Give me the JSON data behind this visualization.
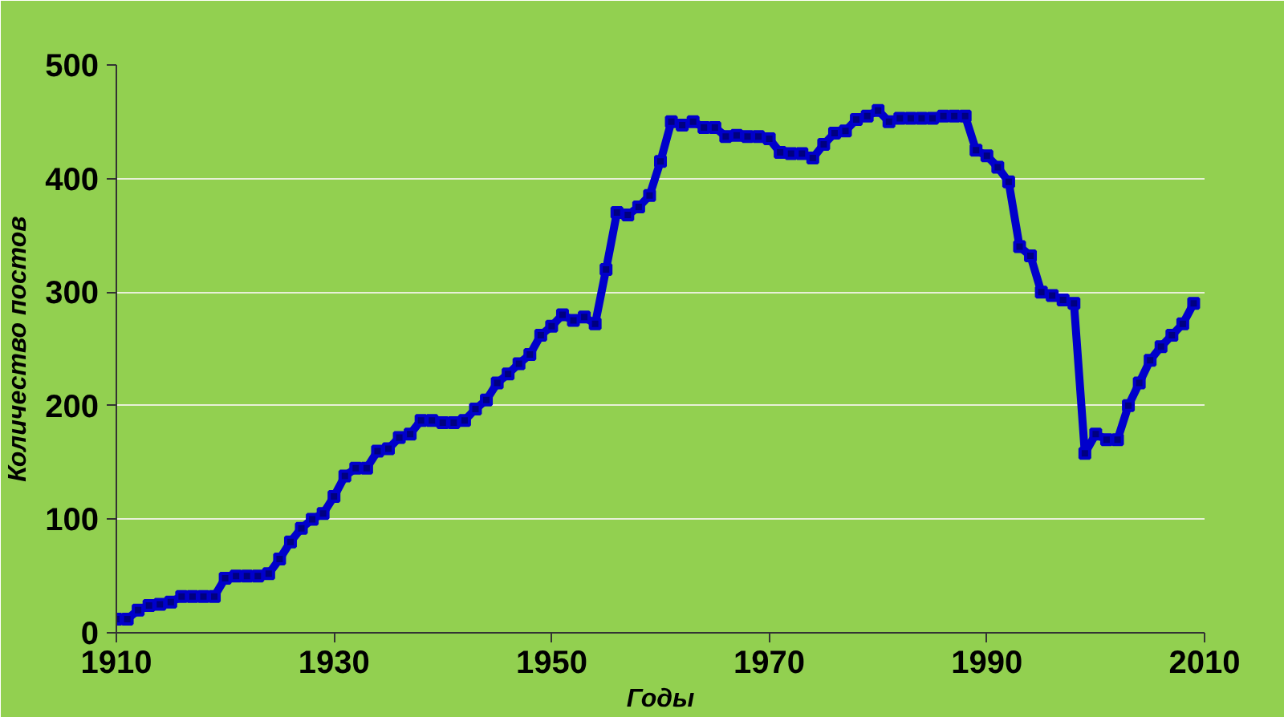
{
  "chart_data": {
    "type": "line",
    "xlabel": "Годы",
    "ylabel": "Количество постов",
    "x": [
      1910,
      1911,
      1912,
      1913,
      1914,
      1915,
      1916,
      1917,
      1918,
      1919,
      1920,
      1921,
      1922,
      1923,
      1924,
      1925,
      1926,
      1927,
      1928,
      1929,
      1930,
      1931,
      1932,
      1933,
      1934,
      1935,
      1936,
      1937,
      1938,
      1939,
      1940,
      1941,
      1942,
      1943,
      1944,
      1945,
      1946,
      1947,
      1948,
      1949,
      1950,
      1951,
      1952,
      1953,
      1954,
      1955,
      1956,
      1957,
      1958,
      1959,
      1960,
      1961,
      1962,
      1963,
      1964,
      1965,
      1966,
      1967,
      1968,
      1969,
      1970,
      1971,
      1972,
      1973,
      1974,
      1975,
      1976,
      1977,
      1978,
      1979,
      1980,
      1981,
      1982,
      1983,
      1984,
      1985,
      1986,
      1987,
      1988,
      1989,
      1990,
      1991,
      1992,
      1993,
      1994,
      1995,
      1996,
      1997,
      1998,
      1999,
      2000,
      2001,
      2002,
      2003,
      2004,
      2005,
      2006,
      2007,
      2008,
      2009
    ],
    "series": [
      {
        "color": "#0000cc",
        "values": [
          12,
          12,
          20,
          24,
          25,
          27,
          32,
          32,
          32,
          32,
          48,
          50,
          50,
          50,
          52,
          65,
          80,
          92,
          100,
          105,
          120,
          138,
          145,
          145,
          160,
          162,
          172,
          175,
          187,
          187,
          185,
          185,
          187,
          197,
          205,
          220,
          228,
          237,
          245,
          262,
          270,
          280,
          275,
          278,
          272,
          320,
          370,
          368,
          375,
          385,
          415,
          450,
          447,
          450,
          445,
          445,
          437,
          438,
          437,
          437,
          435,
          423,
          422,
          422,
          418,
          430,
          440,
          442,
          452,
          455,
          460,
          450,
          453,
          453,
          453,
          453,
          455,
          455,
          455,
          425,
          420,
          410,
          397,
          340,
          332,
          300,
          297,
          293,
          290,
          158,
          175,
          170,
          170,
          200,
          220,
          240,
          252,
          262,
          272,
          290
        ]
      }
    ],
    "xlim": [
      1910,
      2010
    ],
    "xticks": [
      1910,
      1930,
      1950,
      1970,
      1990,
      2010
    ],
    "ylim": [
      0,
      500
    ],
    "yticks": [
      0,
      100,
      200,
      300,
      400,
      500
    ],
    "grid": "y",
    "marker": "square",
    "line_style": "solid"
  }
}
